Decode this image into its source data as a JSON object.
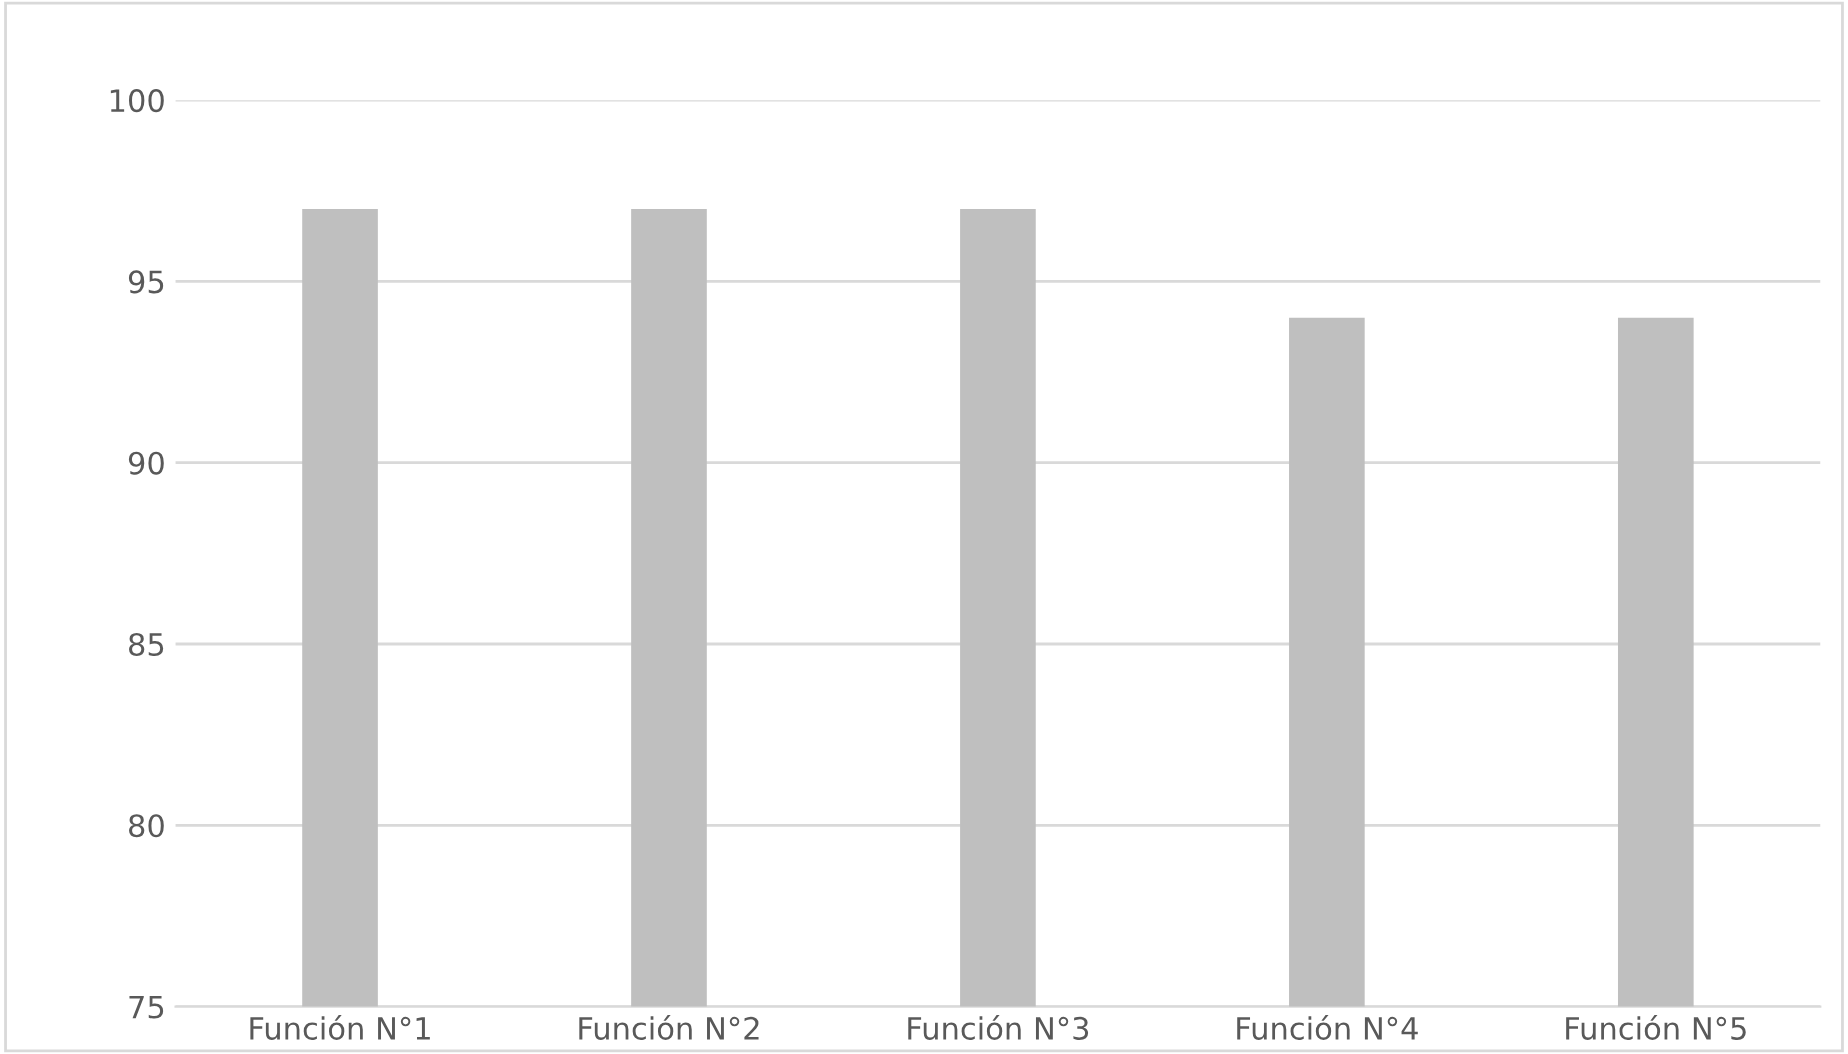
{
  "chart_data": {
    "type": "bar",
    "categories": [
      "Función N°1",
      "Función N°2",
      "Función N°3",
      "Función N°4",
      "Función N°5"
    ],
    "values": [
      97,
      97,
      97,
      94,
      94
    ],
    "color": "#bfbfbf",
    "ylim": [
      75,
      100
    ],
    "yticks": [
      75,
      80,
      85,
      90,
      95,
      100
    ],
    "grid": "y"
  }
}
